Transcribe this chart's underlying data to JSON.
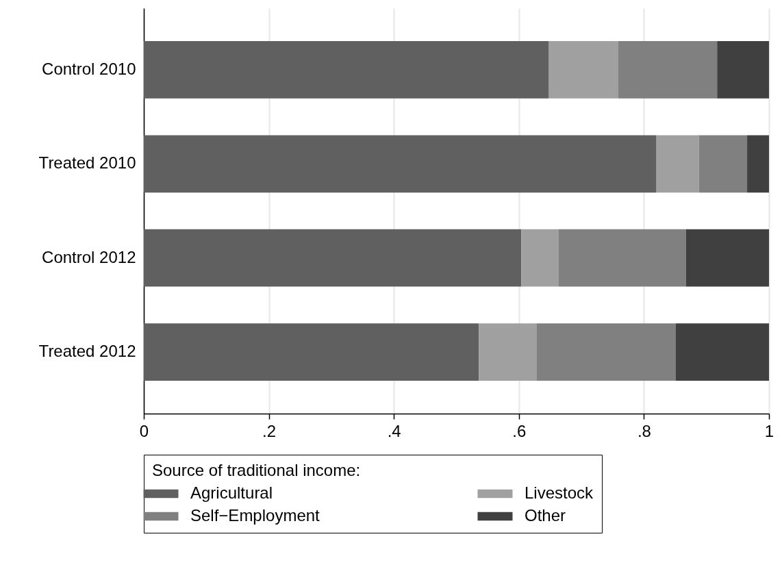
{
  "chart_data": {
    "type": "bar",
    "orientation": "horizontal",
    "stacked": true,
    "categories": [
      "Control 2010",
      "Treated 2010",
      "Control 2012",
      "Treated 2012"
    ],
    "series": [
      {
        "name": "Agricultural",
        "color": "#606060",
        "values": [
          0.648,
          0.82,
          0.604,
          0.536
        ]
      },
      {
        "name": "Livestock",
        "color": "#a0a0a0",
        "values": [
          0.111,
          0.068,
          0.059,
          0.092
        ]
      },
      {
        "name": "Self−Employment",
        "color": "#808080",
        "values": [
          0.158,
          0.077,
          0.204,
          0.223
        ]
      },
      {
        "name": "Other",
        "color": "#404040",
        "values": [
          0.083,
          0.035,
          0.133,
          0.149
        ]
      }
    ],
    "legend_title": "Source of traditional income:",
    "xlim": [
      0,
      1
    ],
    "xticks": [
      0,
      {
        "value": 0.2,
        "label": ".2"
      },
      {
        "value": 0.4,
        "label": ".4"
      },
      {
        "value": 0.6,
        "label": ".6"
      },
      {
        "value": 0.8,
        "label": ".8"
      },
      1
    ],
    "grid": "x",
    "legend": "bottom"
  }
}
